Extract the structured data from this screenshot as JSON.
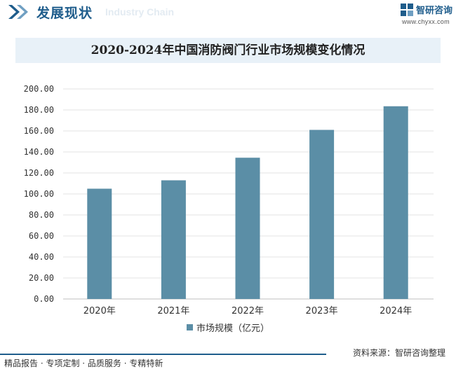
{
  "header": {
    "title": "发展现状",
    "subtitle": "Industry Chain",
    "brand_name": "智研咨询",
    "brand_url": "www.chyxx.com"
  },
  "chart_data": {
    "type": "bar",
    "title": "2020-2024年中国消防阀门行业市场规模变化情况",
    "categories": [
      "2020年",
      "2021年",
      "2022年",
      "2023年",
      "2024年"
    ],
    "series": [
      {
        "name": "市场规模（亿元）",
        "values": [
          105.0,
          113.0,
          134.5,
          161.0,
          183.5
        ],
        "color": "#5b8ea6"
      }
    ],
    "yticks": [
      "0.00",
      "20.00",
      "40.00",
      "60.00",
      "80.00",
      "100.00",
      "120.00",
      "140.00",
      "160.00",
      "180.00",
      "200.00"
    ],
    "ylim": [
      0,
      200
    ],
    "grid": true,
    "xlabel": "",
    "ylabel": "",
    "legend_position": "bottom"
  },
  "footer": {
    "left": "精品报告 · 专项定制 · 品质服务 · 专精特新",
    "right": "资料来源：智研咨询整理"
  }
}
